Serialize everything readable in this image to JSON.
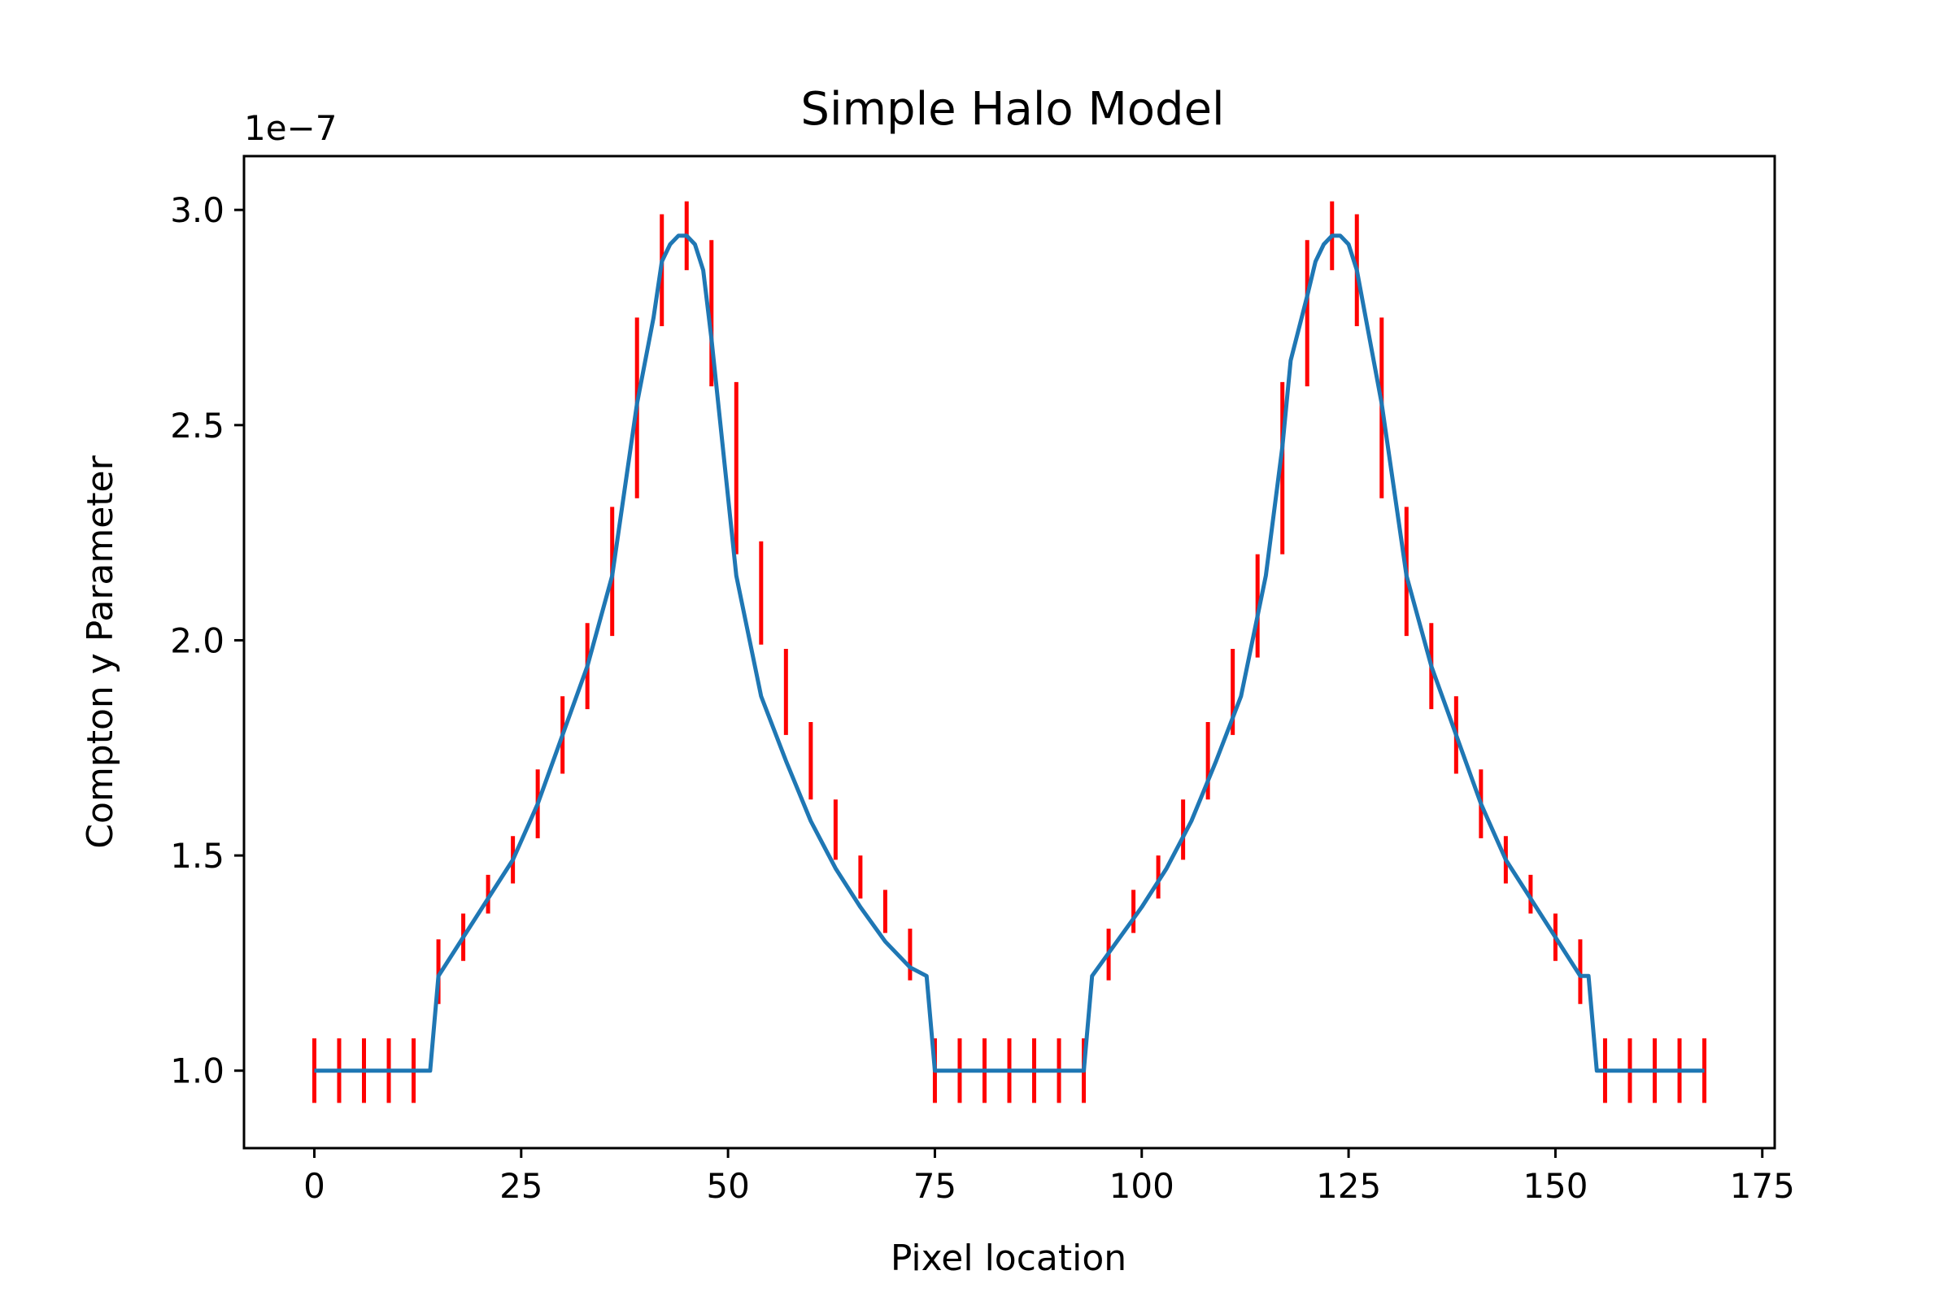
{
  "chart_data": {
    "type": "line",
    "title": "Simple Halo Model",
    "xlabel": "Pixel location",
    "ylabel": "Compton y Parameter",
    "y_offset_text": "1e−7",
    "xlim": [
      -8.5,
      176.5
    ],
    "ylim": [
      0.82,
      3.125
    ],
    "x_ticks": [
      0,
      25,
      50,
      75,
      100,
      125,
      150,
      175
    ],
    "y_ticks": [
      1.0,
      1.5,
      2.0,
      2.5,
      3.0
    ],
    "x_tick_labels": [
      "0",
      "25",
      "50",
      "75",
      "100",
      "125",
      "150",
      "175"
    ],
    "y_tick_labels": [
      "1.0",
      "1.5",
      "2.0",
      "2.5",
      "3.0"
    ],
    "grid": false,
    "colors": {
      "model_line": "#1f77b4",
      "error_bars": "#ff0000"
    },
    "series": [
      {
        "type": "line",
        "x": [
          0,
          3,
          6,
          9,
          12,
          14,
          15,
          18,
          21,
          24,
          27,
          30,
          33,
          36,
          39,
          41,
          42,
          43,
          44,
          45,
          46,
          47,
          48,
          51,
          54,
          57,
          60,
          63,
          66,
          69,
          72,
          74,
          75,
          78,
          81,
          84,
          87,
          90,
          93,
          94,
          97,
          100,
          103,
          106,
          109,
          112,
          115,
          117,
          118,
          120,
          121,
          122,
          123,
          124,
          125,
          126,
          129,
          132,
          135,
          138,
          141,
          144,
          147,
          150,
          153,
          154,
          155,
          158,
          161,
          164,
          168
        ],
        "y": [
          1.0,
          1.0,
          1.0,
          1.0,
          1.0,
          1.0,
          1.22,
          1.31,
          1.4,
          1.49,
          1.62,
          1.78,
          1.94,
          2.15,
          2.55,
          2.75,
          2.88,
          2.92,
          2.94,
          2.94,
          2.92,
          2.86,
          2.7,
          2.15,
          1.87,
          1.72,
          1.58,
          1.47,
          1.38,
          1.3,
          1.24,
          1.22,
          1.0,
          1.0,
          1.0,
          1.0,
          1.0,
          1.0,
          1.0,
          1.22,
          1.3,
          1.38,
          1.47,
          1.58,
          1.72,
          1.87,
          2.15,
          2.45,
          2.65,
          2.8,
          2.88,
          2.92,
          2.94,
          2.94,
          2.92,
          2.86,
          2.55,
          2.15,
          1.94,
          1.78,
          1.62,
          1.49,
          1.4,
          1.31,
          1.22,
          1.22,
          1.0,
          1.0,
          1.0,
          1.0,
          1.0
        ]
      },
      {
        "type": "errorbar",
        "x": [
          0,
          3,
          6,
          9,
          12,
          15,
          18,
          21,
          24,
          27,
          30,
          33,
          36,
          39,
          42,
          45,
          48,
          51,
          54,
          57,
          60,
          63,
          66,
          69,
          72,
          75,
          78,
          81,
          84,
          87,
          90,
          93,
          96,
          99,
          102,
          105,
          108,
          111,
          114,
          117,
          120,
          123,
          126,
          129,
          132,
          135,
          138,
          141,
          144,
          147,
          150,
          153,
          156,
          159,
          162,
          165,
          168
        ],
        "y": [
          1.0,
          1.0,
          1.0,
          1.0,
          1.0,
          1.23,
          1.31,
          1.41,
          1.49,
          1.62,
          1.78,
          1.94,
          2.16,
          2.54,
          2.86,
          2.94,
          2.76,
          2.4,
          2.11,
          1.88,
          1.72,
          1.56,
          1.45,
          1.37,
          1.27,
          1.0,
          1.0,
          1.0,
          1.0,
          1.0,
          1.0,
          1.0,
          1.27,
          1.37,
          1.45,
          1.56,
          1.72,
          1.88,
          2.08,
          2.4,
          2.76,
          2.94,
          2.86,
          2.54,
          2.16,
          1.94,
          1.78,
          1.62,
          1.49,
          1.41,
          1.31,
          1.23,
          1.0,
          1.0,
          1.0,
          1.0,
          1.0
        ],
        "yerr": [
          0.075,
          0.075,
          0.075,
          0.075,
          0.075,
          0.075,
          0.055,
          0.045,
          0.055,
          0.08,
          0.09,
          0.1,
          0.15,
          0.21,
          0.13,
          0.08,
          0.17,
          0.2,
          0.12,
          0.1,
          0.09,
          0.07,
          0.05,
          0.05,
          0.06,
          0.075,
          0.075,
          0.075,
          0.075,
          0.075,
          0.075,
          0.075,
          0.06,
          0.05,
          0.05,
          0.07,
          0.09,
          0.1,
          0.12,
          0.2,
          0.17,
          0.08,
          0.13,
          0.21,
          0.15,
          0.1,
          0.09,
          0.08,
          0.055,
          0.045,
          0.055,
          0.075,
          0.075,
          0.075,
          0.075,
          0.075,
          0.075
        ]
      }
    ]
  }
}
